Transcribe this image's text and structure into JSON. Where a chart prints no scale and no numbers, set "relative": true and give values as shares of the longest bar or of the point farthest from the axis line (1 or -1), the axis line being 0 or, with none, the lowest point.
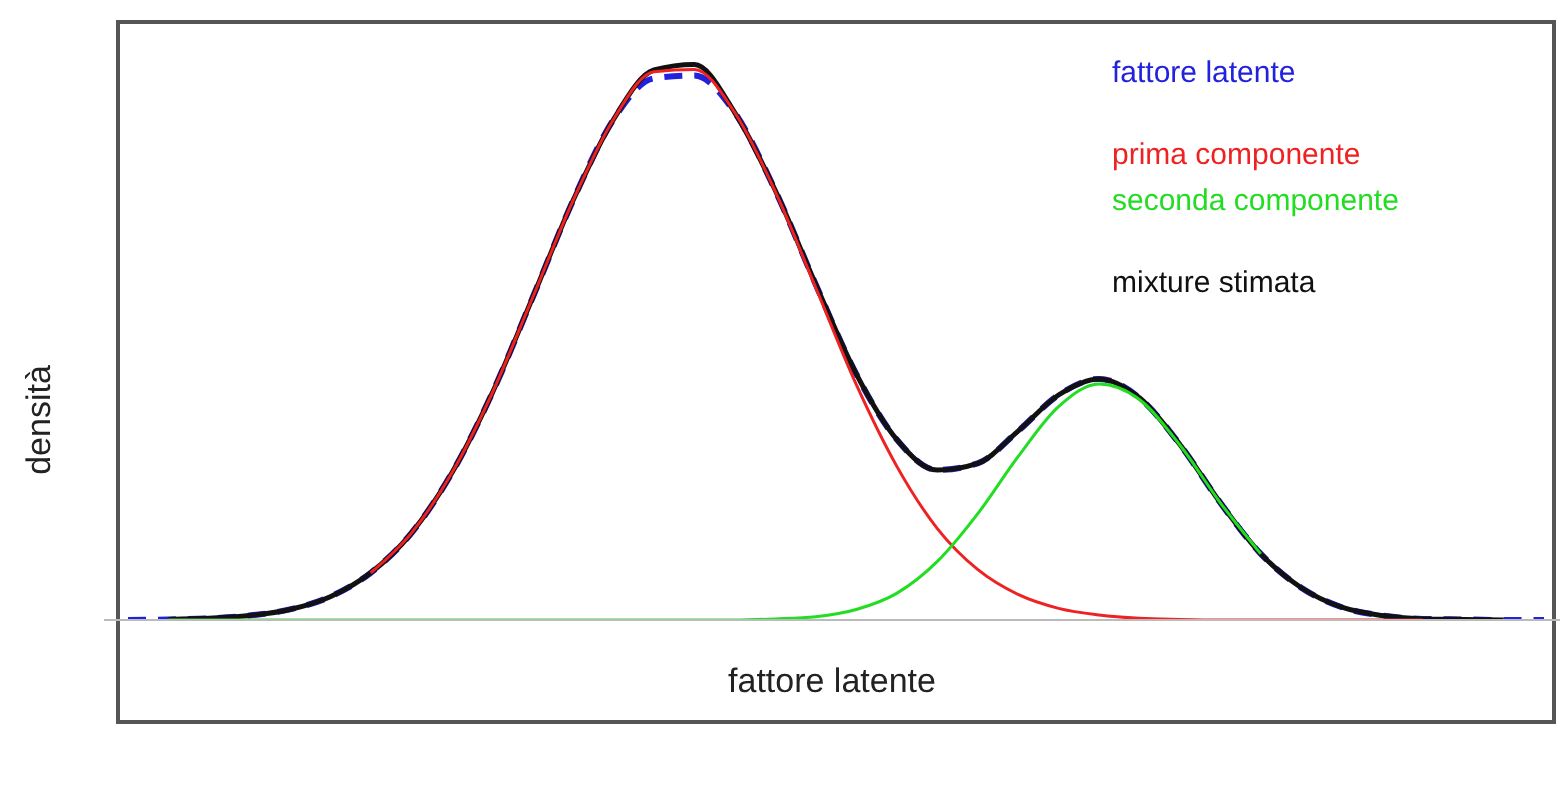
{
  "chart_data": {
    "type": "line",
    "relative": true,
    "xlabel": "fattore latente",
    "ylabel": "densità",
    "legend": "top right",
    "marker": "none",
    "categories": [
      null,
      null,
      null,
      null,
      null,
      null,
      null,
      null,
      null,
      null,
      null,
      null,
      null,
      null,
      null,
      null,
      null,
      null,
      null,
      null,
      null,
      null,
      null,
      null,
      null,
      null,
      null,
      null,
      null,
      null,
      null,
      null,
      null,
      null,
      null,
      null
    ],
    "series": [
      {
        "name": "fattore latente",
        "color": "#2222dd",
        "line_style": "dashed",
        "values": [
          0,
          0.001,
          0.003,
          0.008,
          0.019,
          0.042,
          0.085,
          0.156,
          0.264,
          0.408,
          0.58,
          0.755,
          0.901,
          0.975,
          0.98,
          0.913,
          0.773,
          0.604,
          0.443,
          0.325,
          0.27,
          0.282,
          0.34,
          0.405,
          0.434,
          0.4,
          0.316,
          0.211,
          0.119,
          0.058,
          0.023,
          0.008,
          0.002,
          0.001,
          0,
          0
        ]
      },
      {
        "name": "prima componente",
        "color": "#ee2222",
        "values": [
          null,
          null,
          null,
          null,
          null,
          null,
          0.085,
          0.156,
          0.264,
          0.408,
          0.58,
          0.755,
          0.901,
          0.987,
          0.991,
          0.913,
          0.771,
          0.598,
          0.424,
          0.277,
          0.165,
          0.091,
          0.046,
          0.021,
          0.009,
          0.003,
          0.001,
          0,
          0,
          0,
          0,
          0,
          0,
          null,
          null,
          null
        ]
      },
      {
        "name": "seconda componente",
        "color": "#22dd22",
        "values": [
          null,
          0,
          0,
          0,
          0,
          0,
          0,
          0,
          0,
          0,
          0,
          0,
          0,
          0,
          0,
          0,
          0.002,
          0.006,
          0.019,
          0.048,
          0.105,
          0.191,
          0.294,
          0.384,
          0.425,
          0.397,
          0.315,
          0.211,
          0.119,
          null,
          null,
          null,
          null,
          null,
          null,
          null
        ]
      },
      {
        "name": "mixture stimata",
        "color": "#111111",
        "values": [
          null,
          0.001,
          0.003,
          0.008,
          0.019,
          0.042,
          0.085,
          0.156,
          0.264,
          0.408,
          0.58,
          0.755,
          0.901,
          0.99,
          1,
          0.913,
          0.773,
          0.604,
          0.443,
          0.325,
          0.27,
          0.282,
          0.34,
          0.405,
          0.434,
          0.4,
          0.316,
          0.211,
          0.119,
          0.058,
          0.023,
          0.008,
          0.002,
          0.001,
          0,
          null
        ]
      }
    ]
  }
}
